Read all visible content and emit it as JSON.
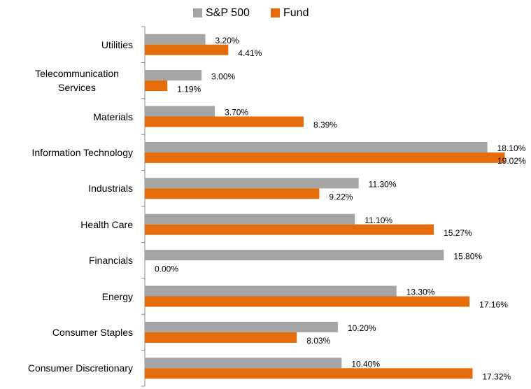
{
  "chart_data": {
    "type": "bar",
    "orientation": "horizontal",
    "categories": [
      "Utilities",
      "Telecommunication Services",
      "Materials",
      "Information Technology",
      "Industrials",
      "Health Care",
      "Financials",
      "Energy",
      "Consumer Staples",
      "Consumer Discretionary"
    ],
    "series": [
      {
        "name": "S&P 500",
        "color": "#a5a5a5",
        "values": [
          3.2,
          3.0,
          3.7,
          18.1,
          11.3,
          11.1,
          15.8,
          13.3,
          10.2,
          10.4
        ],
        "value_labels": [
          "3.20%",
          "3.00%",
          "3.70%",
          "18.10%",
          "11.30%",
          "11.10%",
          "15.80%",
          "13.30%",
          "10.20%",
          "10.40%"
        ]
      },
      {
        "name": "Fund",
        "color": "#e46c0a",
        "values": [
          4.41,
          1.19,
          8.39,
          19.02,
          9.22,
          15.27,
          0.0,
          17.16,
          8.03,
          17.32
        ],
        "value_labels": [
          "4.41%",
          "1.19%",
          "8.39%",
          "19.02%",
          "9.22%",
          "15.27%",
          "0.00%",
          "17.16%",
          "8.03%",
          "17.32%"
        ]
      }
    ],
    "xlim": [
      0,
      20
    ],
    "legend": "top"
  }
}
